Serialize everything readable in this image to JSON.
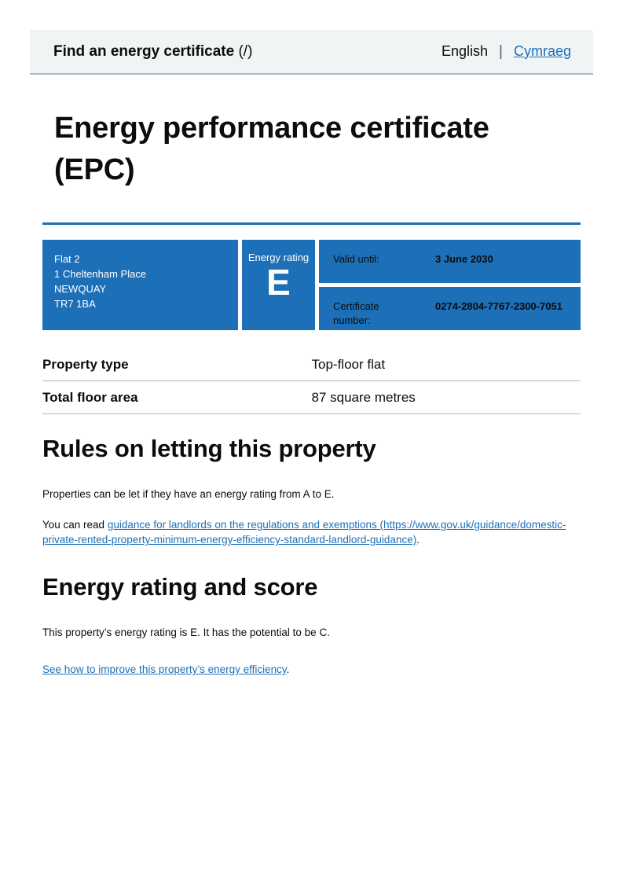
{
  "header": {
    "service_name": "Find an energy certificate",
    "service_url_suffix": " (/)",
    "language_current": "English",
    "language_separator": "|",
    "language_link": "Cymraeg"
  },
  "page": {
    "title": "Energy performance certificate (EPC)"
  },
  "certificate_box": {
    "address_lines": [
      "Flat 2",
      "1 Cheltenham Place",
      "NEWQUAY",
      "TR7 1BA"
    ],
    "energy_rating_label": "Energy rating",
    "energy_rating": "E",
    "valid_until_label": "Valid until:",
    "valid_until_value": "3 June 2030",
    "certificate_number_label": "Certificate number:",
    "certificate_number_value": "0274-2804-7767-2300-7051"
  },
  "summary": {
    "rows": [
      {
        "label": "Property type",
        "value": "Top-floor flat"
      },
      {
        "label": "Total floor area",
        "value": "87 square metres"
      }
    ]
  },
  "rules_section": {
    "heading": "Rules on letting this property",
    "paragraph1": "Properties can be let if they have an energy rating from A to E.",
    "paragraph2_prefix": "You can read ",
    "guidance_link_text": "guidance for landlords on the regulations and exemptions (https://www.gov.uk/guidance/domestic-private-rented-property-minimum-energy-efficiency-standard-landlord-guidance)",
    "paragraph2_suffix": "."
  },
  "rating_section": {
    "heading": "Energy rating and score",
    "paragraph1": "This property’s energy rating is E. It has the potential to be C.",
    "improve_link_text": "See how to improve this property’s energy efficiency",
    "improve_link_suffix": "."
  },
  "colors": {
    "govuk_blue": "#1d70b8",
    "header_background": "#f0f4f5",
    "header_border": "#a9bdc7",
    "text": "#0b0c0c",
    "table_border": "#b1b4b6",
    "link": "#1d70b8"
  }
}
